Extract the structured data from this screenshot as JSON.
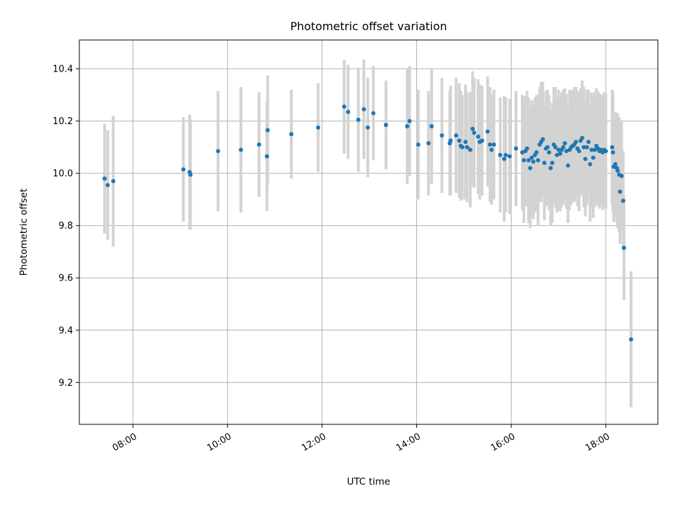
{
  "chart_data": {
    "type": "scatter",
    "title": "Photometric offset variation",
    "xlabel": "UTC time",
    "ylabel": "Photometric offset",
    "x_ticks": [
      "08:00",
      "10:00",
      "12:00",
      "14:00",
      "16:00",
      "18:00"
    ],
    "y_ticks": [
      9.2,
      9.4,
      9.6,
      9.8,
      10.0,
      10.2,
      10.4
    ],
    "xlim": [
      "06:52",
      "19:06"
    ],
    "ylim": [
      9.04,
      10.51
    ],
    "grid": true,
    "colors": {
      "point": "#1f77b4",
      "errorbar": "#d3d3d3",
      "grid": "#b0b0b0"
    },
    "points": [
      {
        "t": "07:24",
        "y": 9.98,
        "err": 0.21
      },
      {
        "t": "07:28",
        "y": 9.955,
        "err": 0.21
      },
      {
        "t": "07:35",
        "y": 9.97,
        "err": 0.25
      },
      {
        "t": "09:04",
        "y": 10.015,
        "err": 0.2
      },
      {
        "t": "09:12",
        "y": 10.005,
        "err": 0.22
      },
      {
        "t": "09:13",
        "y": 9.995,
        "err": 0.21
      },
      {
        "t": "09:48",
        "y": 10.085,
        "err": 0.23
      },
      {
        "t": "10:17",
        "y": 10.09,
        "err": 0.24
      },
      {
        "t": "10:40",
        "y": 10.11,
        "err": 0.2
      },
      {
        "t": "10:50",
        "y": 10.065,
        "err": 0.21
      },
      {
        "t": "10:51",
        "y": 10.165,
        "err": 0.21
      },
      {
        "t": "11:21",
        "y": 10.15,
        "err": 0.17
      },
      {
        "t": "11:55",
        "y": 10.175,
        "err": 0.17
      },
      {
        "t": "12:28",
        "y": 10.255,
        "err": 0.18
      },
      {
        "t": "12:33",
        "y": 10.235,
        "err": 0.18
      },
      {
        "t": "12:46",
        "y": 10.205,
        "err": 0.2
      },
      {
        "t": "12:53",
        "y": 10.245,
        "err": 0.19
      },
      {
        "t": "12:58",
        "y": 10.175,
        "err": 0.19
      },
      {
        "t": "13:05",
        "y": 10.23,
        "err": 0.18
      },
      {
        "t": "13:21",
        "y": 10.185,
        "err": 0.17
      },
      {
        "t": "13:48",
        "y": 10.18,
        "err": 0.22
      },
      {
        "t": "13:51",
        "y": 10.2,
        "err": 0.21
      },
      {
        "t": "14:02",
        "y": 10.11,
        "err": 0.21
      },
      {
        "t": "14:15",
        "y": 10.115,
        "err": 0.2
      },
      {
        "t": "14:19",
        "y": 10.18,
        "err": 0.22
      },
      {
        "t": "14:32",
        "y": 10.145,
        "err": 0.22
      },
      {
        "t": "14:42",
        "y": 10.115,
        "err": 0.2
      },
      {
        "t": "14:43",
        "y": 10.125,
        "err": 0.21
      },
      {
        "t": "14:50",
        "y": 10.145,
        "err": 0.22
      },
      {
        "t": "14:54",
        "y": 10.125,
        "err": 0.22
      },
      {
        "t": "14:56",
        "y": 10.105,
        "err": 0.21
      },
      {
        "t": "14:58",
        "y": 10.1,
        "err": 0.2
      },
      {
        "t": "15:02",
        "y": 10.12,
        "err": 0.22
      },
      {
        "t": "15:04",
        "y": 10.1,
        "err": 0.21
      },
      {
        "t": "15:08",
        "y": 10.09,
        "err": 0.22
      },
      {
        "t": "15:11",
        "y": 10.17,
        "err": 0.22
      },
      {
        "t": "15:13",
        "y": 10.155,
        "err": 0.21
      },
      {
        "t": "15:18",
        "y": 10.14,
        "err": 0.22
      },
      {
        "t": "15:20",
        "y": 10.12,
        "err": 0.22
      },
      {
        "t": "15:23",
        "y": 10.125,
        "err": 0.21
      },
      {
        "t": "15:30",
        "y": 10.16,
        "err": 0.21
      },
      {
        "t": "15:33",
        "y": 10.11,
        "err": 0.22
      },
      {
        "t": "15:35",
        "y": 10.09,
        "err": 0.21
      },
      {
        "t": "15:38",
        "y": 10.11,
        "err": 0.21
      },
      {
        "t": "15:46",
        "y": 10.07,
        "err": 0.22
      },
      {
        "t": "15:51",
        "y": 10.055,
        "err": 0.24
      },
      {
        "t": "15:53",
        "y": 10.07,
        "err": 0.22
      },
      {
        "t": "15:58",
        "y": 10.065,
        "err": 0.22
      },
      {
        "t": "16:06",
        "y": 10.095,
        "err": 0.22
      },
      {
        "t": "16:14",
        "y": 10.08,
        "err": 0.22
      },
      {
        "t": "16:16",
        "y": 10.05,
        "err": 0.24
      },
      {
        "t": "16:18",
        "y": 10.085,
        "err": 0.21
      },
      {
        "t": "16:20",
        "y": 10.095,
        "err": 0.22
      },
      {
        "t": "16:22",
        "y": 10.05,
        "err": 0.24
      },
      {
        "t": "16:24",
        "y": 10.02,
        "err": 0.23
      },
      {
        "t": "16:26",
        "y": 10.06,
        "err": 0.22
      },
      {
        "t": "16:28",
        "y": 10.045,
        "err": 0.22
      },
      {
        "t": "16:30",
        "y": 10.07,
        "err": 0.22
      },
      {
        "t": "16:32",
        "y": 10.08,
        "err": 0.22
      },
      {
        "t": "16:34",
        "y": 10.05,
        "err": 0.25
      },
      {
        "t": "16:36",
        "y": 10.11,
        "err": 0.22
      },
      {
        "t": "16:38",
        "y": 10.12,
        "err": 0.23
      },
      {
        "t": "16:40",
        "y": 10.13,
        "err": 0.22
      },
      {
        "t": "16:42",
        "y": 10.04,
        "err": 0.22
      },
      {
        "t": "16:44",
        "y": 10.095,
        "err": 0.22
      },
      {
        "t": "16:46",
        "y": 10.1,
        "err": 0.22
      },
      {
        "t": "16:48",
        "y": 10.08,
        "err": 0.22
      },
      {
        "t": "16:50",
        "y": 10.02,
        "err": 0.22
      },
      {
        "t": "16:52",
        "y": 10.04,
        "err": 0.23
      },
      {
        "t": "16:54",
        "y": 10.11,
        "err": 0.22
      },
      {
        "t": "16:56",
        "y": 10.1,
        "err": 0.23
      },
      {
        "t": "16:58",
        "y": 10.07,
        "err": 0.22
      },
      {
        "t": "17:00",
        "y": 10.09,
        "err": 0.23
      },
      {
        "t": "17:02",
        "y": 10.075,
        "err": 0.22
      },
      {
        "t": "17:04",
        "y": 10.09,
        "err": 0.22
      },
      {
        "t": "17:06",
        "y": 10.1,
        "err": 0.22
      },
      {
        "t": "17:08",
        "y": 10.115,
        "err": 0.21
      },
      {
        "t": "17:10",
        "y": 10.085,
        "err": 0.22
      },
      {
        "t": "17:12",
        "y": 10.03,
        "err": 0.22
      },
      {
        "t": "17:14",
        "y": 10.09,
        "err": 0.23
      },
      {
        "t": "17:16",
        "y": 10.1,
        "err": 0.22
      },
      {
        "t": "17:18",
        "y": 10.105,
        "err": 0.21
      },
      {
        "t": "17:20",
        "y": 10.11,
        "err": 0.22
      },
      {
        "t": "17:22",
        "y": 10.12,
        "err": 0.21
      },
      {
        "t": "17:24",
        "y": 10.095,
        "err": 0.22
      },
      {
        "t": "17:26",
        "y": 10.085,
        "err": 0.23
      },
      {
        "t": "17:28",
        "y": 10.125,
        "err": 0.2
      },
      {
        "t": "17:30",
        "y": 10.135,
        "err": 0.22
      },
      {
        "t": "17:32",
        "y": 10.1,
        "err": 0.23
      },
      {
        "t": "17:34",
        "y": 10.055,
        "err": 0.22
      },
      {
        "t": "17:36",
        "y": 10.1,
        "err": 0.22
      },
      {
        "t": "17:38",
        "y": 10.12,
        "err": 0.2
      },
      {
        "t": "17:40",
        "y": 10.035,
        "err": 0.22
      },
      {
        "t": "17:42",
        "y": 10.09,
        "err": 0.22
      },
      {
        "t": "17:44",
        "y": 10.06,
        "err": 0.23
      },
      {
        "t": "17:46",
        "y": 10.09,
        "err": 0.22
      },
      {
        "t": "17:48",
        "y": 10.105,
        "err": 0.22
      },
      {
        "t": "17:50",
        "y": 10.095,
        "err": 0.22
      },
      {
        "t": "17:52",
        "y": 10.085,
        "err": 0.22
      },
      {
        "t": "17:54",
        "y": 10.09,
        "err": 0.21
      },
      {
        "t": "17:56",
        "y": 10.08,
        "err": 0.22
      },
      {
        "t": "17:58",
        "y": 10.09,
        "err": 0.22
      },
      {
        "t": "18:00",
        "y": 10.085,
        "err": 0.22
      },
      {
        "t": "18:08",
        "y": 10.1,
        "err": 0.22
      },
      {
        "t": "18:09",
        "y": 10.08,
        "err": 0.23
      },
      {
        "t": "18:10",
        "y": 10.025,
        "err": 0.21
      },
      {
        "t": "18:12",
        "y": 10.035,
        "err": 0.2
      },
      {
        "t": "18:14",
        "y": 10.02,
        "err": 0.21
      },
      {
        "t": "18:15",
        "y": 10.01,
        "err": 0.22
      },
      {
        "t": "18:17",
        "y": 9.995,
        "err": 0.22
      },
      {
        "t": "18:18",
        "y": 9.93,
        "err": 0.2
      },
      {
        "t": "18:20",
        "y": 9.99,
        "err": 0.21
      },
      {
        "t": "18:22",
        "y": 9.895,
        "err": 0.19
      },
      {
        "t": "18:23",
        "y": 9.715,
        "err": 0.2
      },
      {
        "t": "18:32",
        "y": 9.365,
        "err": 0.26
      }
    ]
  }
}
